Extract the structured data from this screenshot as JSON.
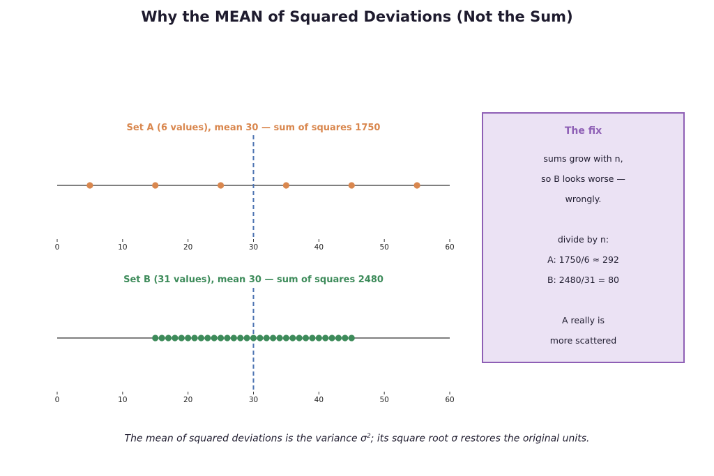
{
  "title": "Why the MEAN of Squared Deviations (Not the Sum)",
  "chart_data": [
    {
      "type": "scatter",
      "title": "Set A (6 values), mean 30 — sum of squares 1750",
      "color": "#d9874e",
      "mean": 30,
      "xlim": [
        0,
        60
      ],
      "xticks": [
        0,
        10,
        20,
        30,
        40,
        50,
        60
      ],
      "x": [
        5,
        15,
        25,
        35,
        45,
        55
      ],
      "grid": false
    },
    {
      "type": "scatter",
      "title": "Set B (31 values), mean 30 — sum of squares 2480",
      "color": "#3d8b5a",
      "mean": 30,
      "xlim": [
        0,
        60
      ],
      "xticks": [
        0,
        10,
        20,
        30,
        40,
        50,
        60
      ],
      "x": [
        15,
        16,
        17,
        18,
        19,
        20,
        21,
        22,
        23,
        24,
        25,
        26,
        27,
        28,
        29,
        30,
        31,
        32,
        33,
        34,
        35,
        36,
        37,
        38,
        39,
        40,
        41,
        42,
        43,
        44,
        45
      ],
      "grid": false
    }
  ],
  "mean_line_color": "#4a72b0",
  "fix_box": {
    "title": "The fix",
    "lines": [
      "sums grow with n,",
      "so B looks worse —",
      "wrongly.",
      "",
      "divide by n:",
      "A: 1750/6 ≈ 292",
      "B: 2480/31 = 80",
      "",
      "A really is",
      "more scattered"
    ]
  },
  "footer": {
    "before": "The mean of squared deviations is the variance σ",
    "sup": "2",
    "after": "; its square root σ restores the original units."
  }
}
